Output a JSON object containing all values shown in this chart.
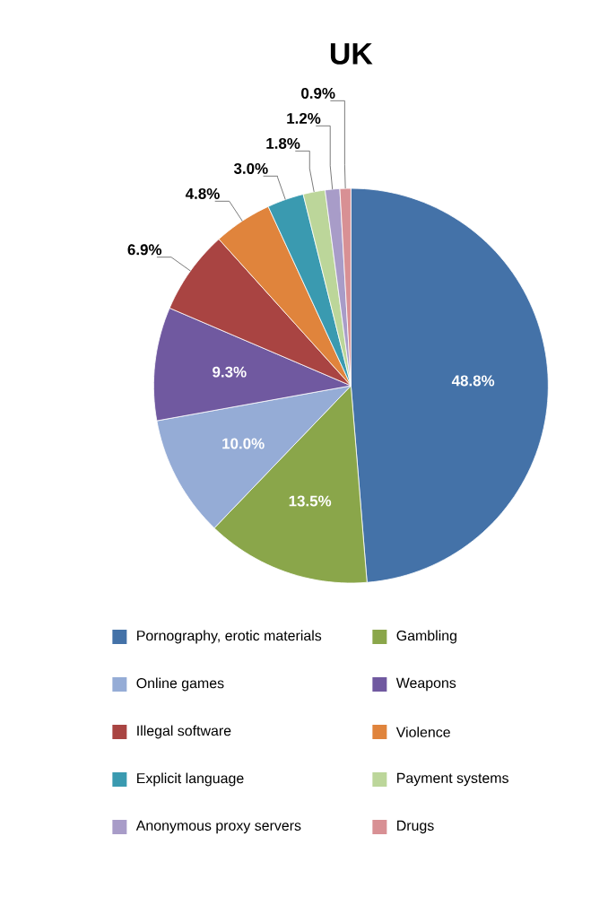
{
  "chart_data": {
    "type": "pie",
    "title": "UK",
    "categories": [
      "Pornography, erotic materials",
      "Gambling",
      "Online games",
      "Weapons",
      "Illegal software",
      "Violence",
      "Explicit language",
      "Payment systems",
      "Anonymous proxy servers",
      "Drugs"
    ],
    "values": [
      48.8,
      13.5,
      10.0,
      9.3,
      6.9,
      4.8,
      3.0,
      1.8,
      1.2,
      0.9
    ],
    "value_labels": [
      "48.8%",
      "13.5%",
      "10.0%",
      "9.3%",
      "6.9%",
      "4.8%",
      "3.0%",
      "1.8%",
      "1.2%",
      "0.9%"
    ],
    "colors": [
      "#4472a8",
      "#8aa64a",
      "#95acd6",
      "#7059a0",
      "#a94442",
      "#e0843c",
      "#3a9ab0",
      "#bcd69a",
      "#a89cc8",
      "#d89094"
    ],
    "legend": "bottom"
  }
}
